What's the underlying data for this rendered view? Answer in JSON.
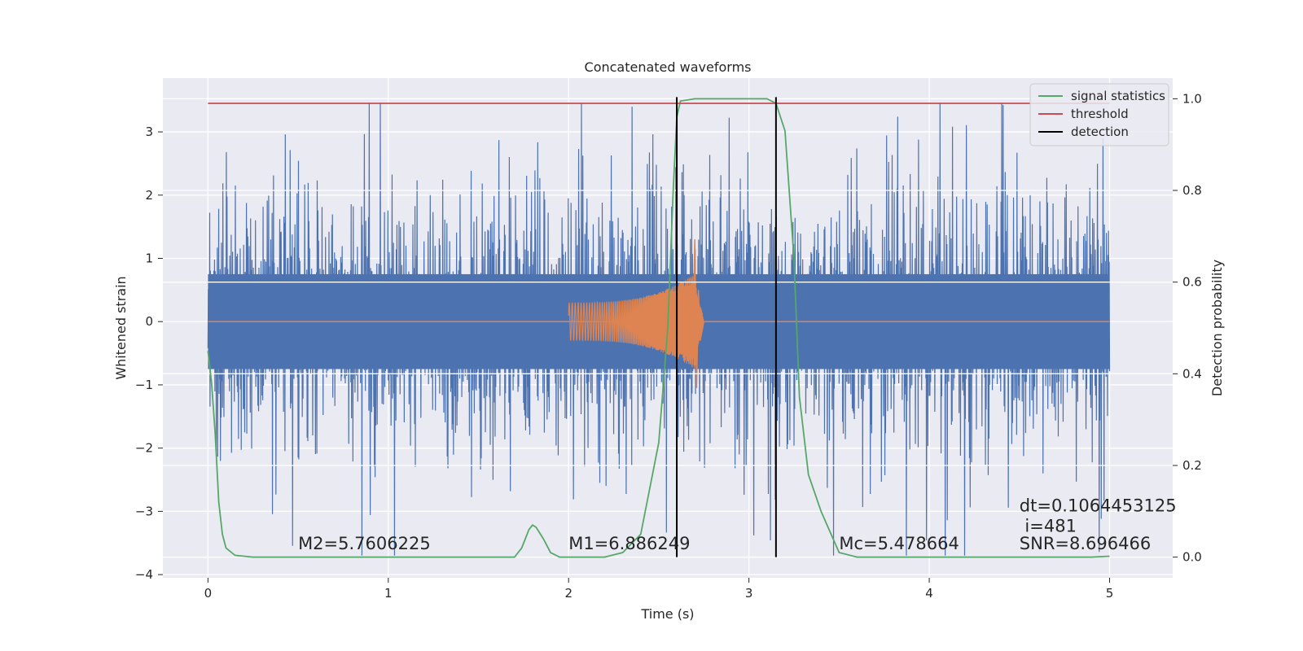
{
  "chart_data": {
    "type": "line",
    "title": "Concatenated waveforms",
    "xlabel": "Time (s)",
    "ylabel": "Whitened strain",
    "y2label": "Detection probability",
    "xlim": [
      -0.25,
      5.35
    ],
    "ylim": [
      -4.05,
      3.85
    ],
    "y2lim": [
      -0.045,
      1.045
    ],
    "xticks": [
      0,
      1,
      2,
      3,
      4,
      5
    ],
    "xtick_labels": [
      "0",
      "1",
      "2",
      "3",
      "4",
      "5"
    ],
    "yticks": [
      -4,
      -3,
      -2,
      -1,
      0,
      1,
      2,
      3
    ],
    "ytick_labels": [
      "−4",
      "−3",
      "−2",
      "−1",
      "0",
      "1",
      "2",
      "3"
    ],
    "y2ticks": [
      0,
      0.2,
      0.4,
      0.6,
      0.8,
      1.0
    ],
    "y2tick_labels": [
      "0.0",
      "0.2",
      "0.4",
      "0.6",
      "0.8",
      "1.0"
    ],
    "grid": true,
    "legend_position": "top-right",
    "series": [
      {
        "key": "noise",
        "axis": "left",
        "color": "#4c72b0",
        "style": "noise",
        "x_range": [
          0,
          5
        ],
        "y_range": [
          -3.7,
          3.45
        ],
        "core_band": [
          -0.75,
          0.75
        ]
      },
      {
        "key": "chirp",
        "axis": "left",
        "color": "#dd8452",
        "style": "chirp",
        "x_start": 2.0,
        "x_peak": 2.7,
        "x_end": 2.75,
        "start_amplitude": 0.3,
        "peak_max": 1.3,
        "peak_min": -1.05
      },
      {
        "name": "signal statistics",
        "axis": "right",
        "color": "#55a868",
        "points": [
          [
            0.0,
            0.45
          ],
          [
            0.02,
            0.38
          ],
          [
            0.04,
            0.27
          ],
          [
            0.06,
            0.12
          ],
          [
            0.08,
            0.05
          ],
          [
            0.1,
            0.02
          ],
          [
            0.15,
            0.004
          ],
          [
            0.25,
            0.0
          ],
          [
            1.0,
            0.0
          ],
          [
            1.7,
            0.0
          ],
          [
            1.74,
            0.02
          ],
          [
            1.78,
            0.06
          ],
          [
            1.8,
            0.07
          ],
          [
            1.82,
            0.065
          ],
          [
            1.86,
            0.04
          ],
          [
            1.9,
            0.01
          ],
          [
            1.95,
            0.0
          ],
          [
            2.2,
            0.0
          ],
          [
            2.3,
            0.01
          ],
          [
            2.4,
            0.05
          ],
          [
            2.5,
            0.25
          ],
          [
            2.55,
            0.5
          ],
          [
            2.58,
            0.8
          ],
          [
            2.6,
            0.96
          ],
          [
            2.62,
            0.995
          ],
          [
            2.7,
            1.0
          ],
          [
            3.1,
            1.0
          ],
          [
            3.15,
            0.99
          ],
          [
            3.2,
            0.93
          ],
          [
            3.25,
            0.65
          ],
          [
            3.28,
            0.35
          ],
          [
            3.33,
            0.18
          ],
          [
            3.4,
            0.1
          ],
          [
            3.5,
            0.01
          ],
          [
            3.6,
            0.0
          ],
          [
            4.9,
            0.0
          ],
          [
            5.0,
            0.002
          ]
        ]
      },
      {
        "name": "threshold",
        "axis": "right",
        "color": "#c44e52",
        "points": [
          [
            0,
            0.99
          ],
          [
            5,
            0.99
          ]
        ]
      },
      {
        "name": "detection",
        "axis": "right",
        "color": "#000000",
        "vlines": [
          2.6,
          3.15
        ],
        "y_span": [
          0,
          1.0
        ]
      }
    ],
    "annotations": [
      {
        "text": "M2=5.7606225",
        "x": 0.5,
        "y": -3.6
      },
      {
        "text": "M1=6.886249",
        "x": 2.0,
        "y": -3.6
      },
      {
        "text": "Mc=5.478664",
        "x": 3.5,
        "y": -3.6
      },
      {
        "text": "dt=0.1064453125",
        "x": 4.5,
        "y": -3.0
      },
      {
        "text": "i=481",
        "x": 4.53,
        "y": -3.32
      },
      {
        "text": "SNR=8.696466",
        "x": 4.5,
        "y": -3.6
      }
    ]
  }
}
